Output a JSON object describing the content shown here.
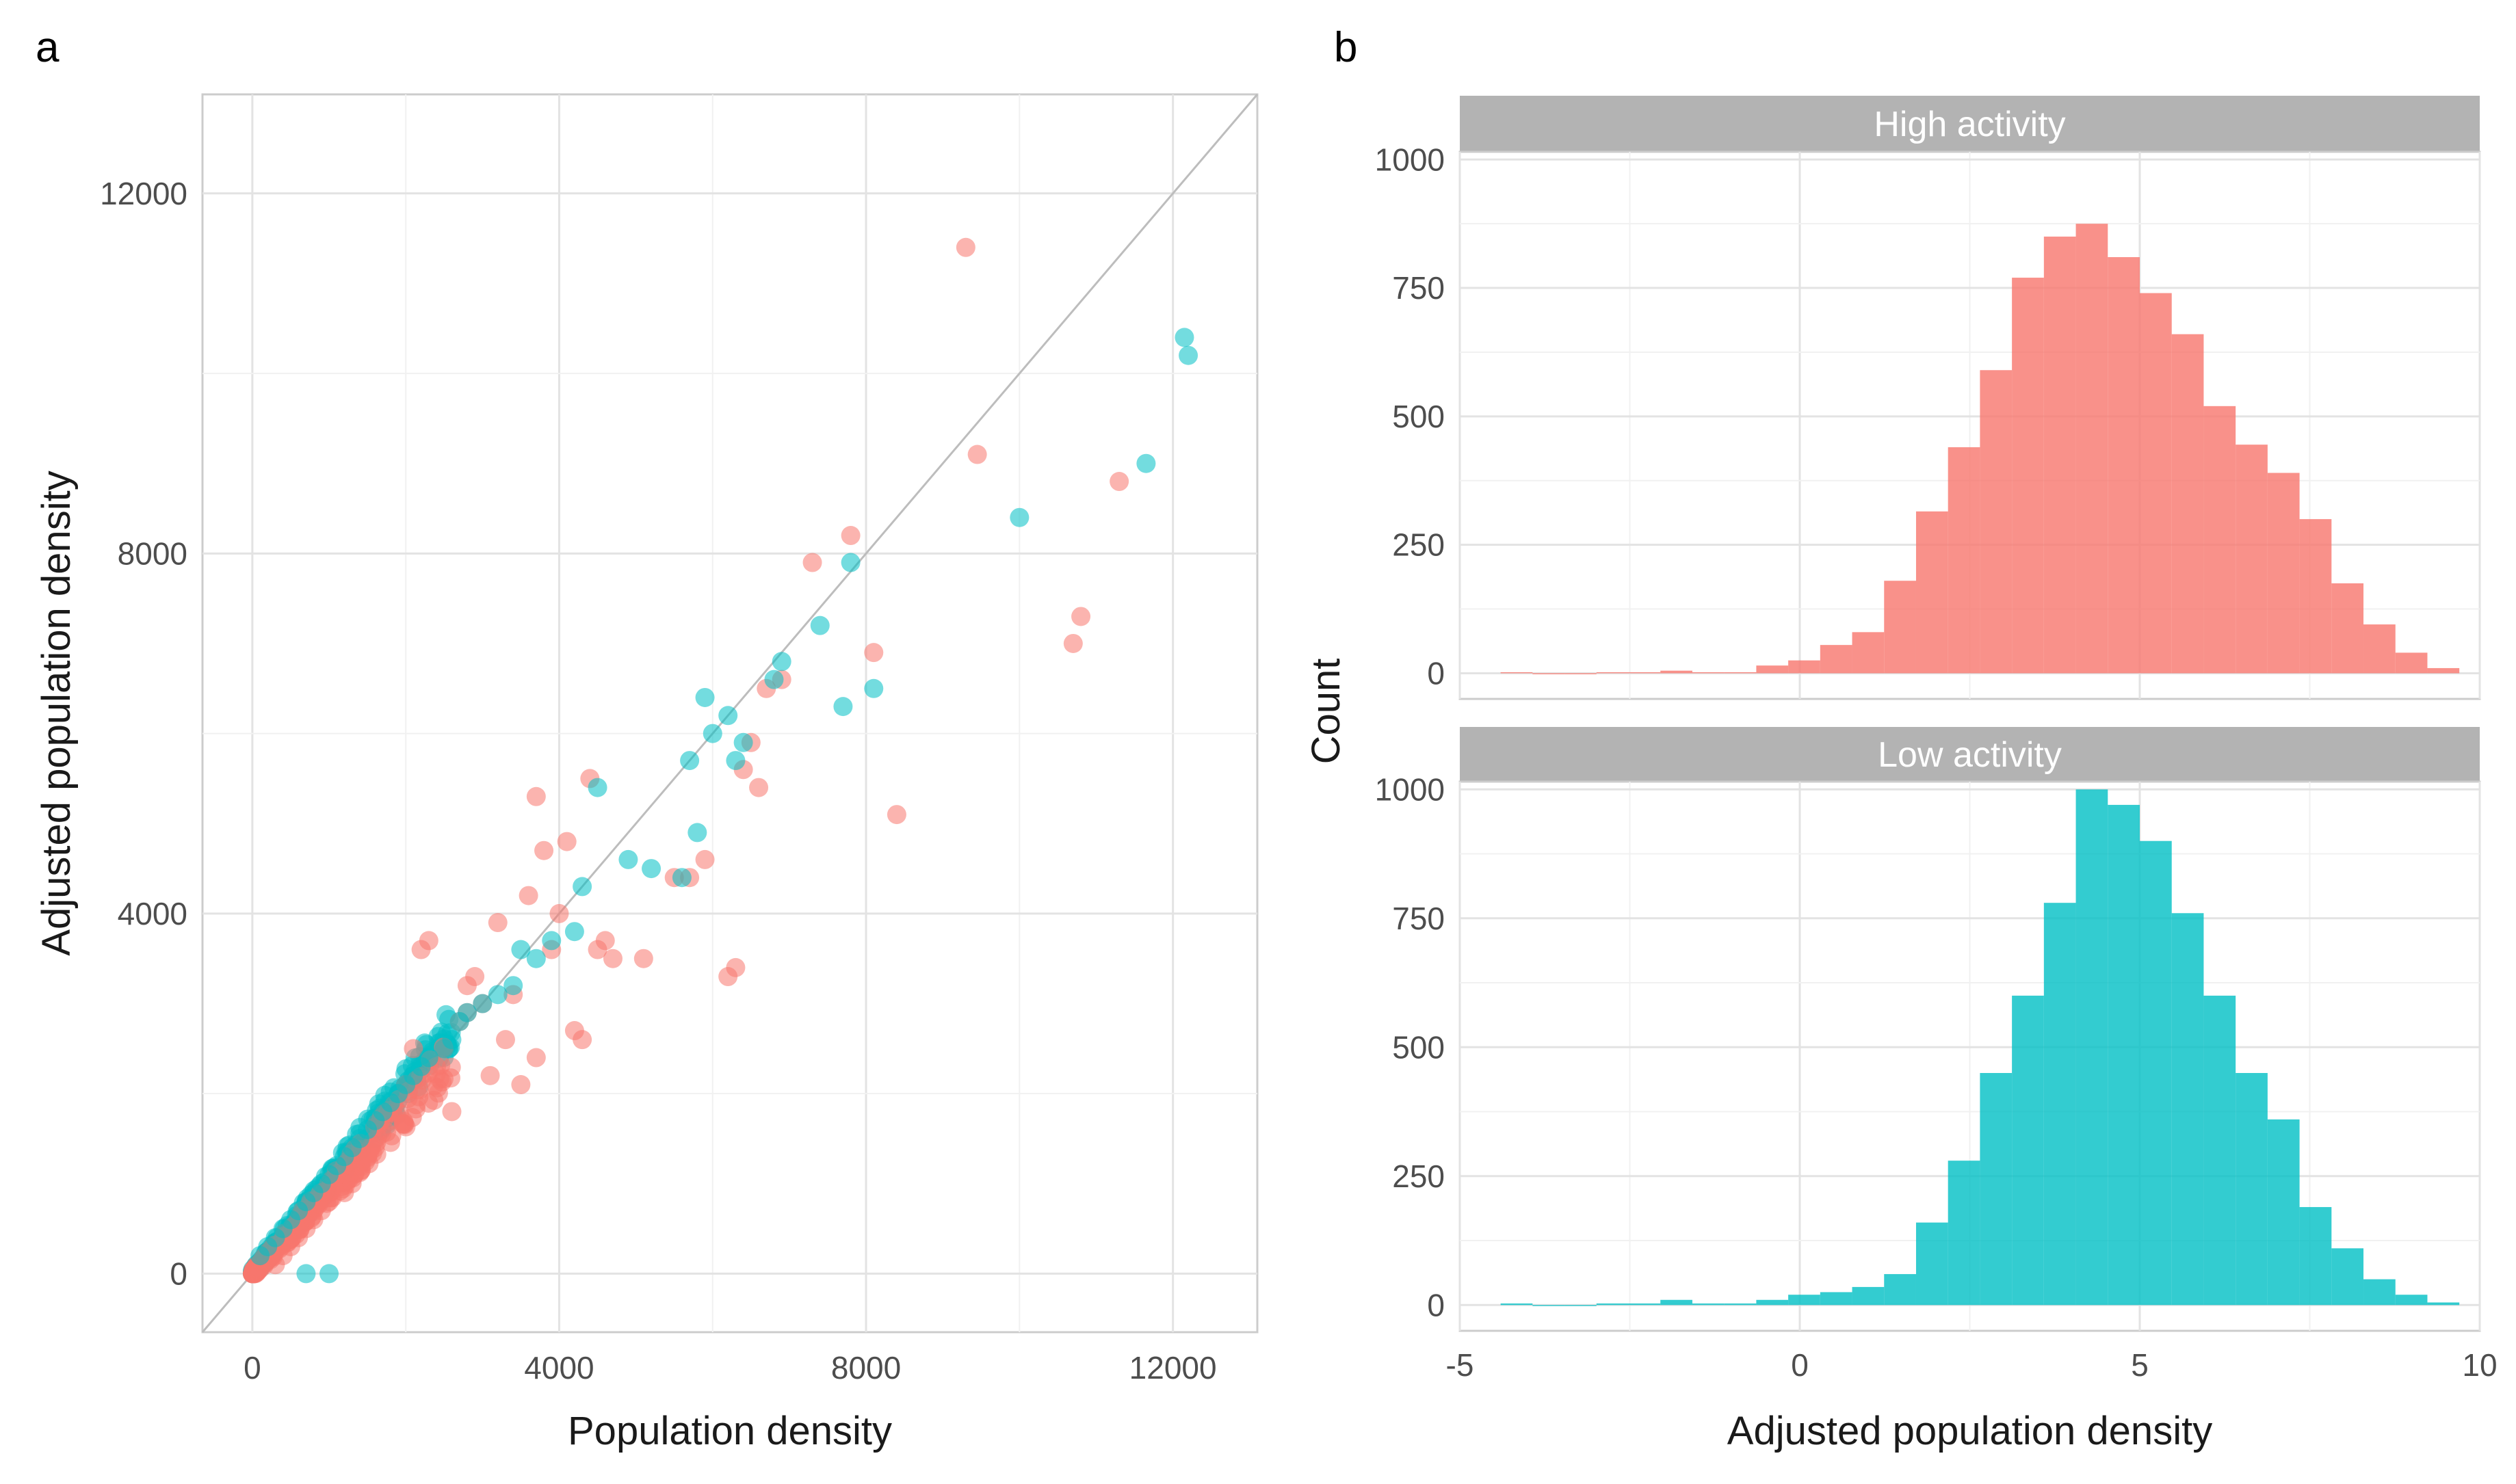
{
  "chart_data": [
    {
      "panel_label": "a",
      "type": "scatter",
      "xlabel": "Population density",
      "ylabel": "Adjusted population density",
      "xlim": [
        -650,
        13100
      ],
      "ylim": [
        -650,
        13100
      ],
      "xticks": [
        0,
        4000,
        8000,
        12000
      ],
      "yticks": [
        0,
        4000,
        8000,
        12000
      ],
      "grid": true,
      "reference_line": "y = x",
      "colors": {
        "high": "#F8766D",
        "low": "#00BFC4"
      },
      "series": [
        {
          "name": "High activity",
          "color": "#F8766D",
          "x": [
            9300,
            9450,
            10700,
            10800,
            11300,
            7800,
            7300,
            8100,
            8400,
            6900,
            6700,
            6300,
            6200,
            6400,
            5500,
            5100,
            4700,
            4300,
            4200,
            4500,
            4600,
            3800,
            3400,
            3300,
            3100,
            3700,
            3500,
            3900,
            4000,
            3200,
            2900,
            2800,
            2500,
            2700,
            2300,
            2200,
            2100,
            2400,
            2600,
            2000,
            1800,
            1600,
            1500,
            1400,
            1300,
            1200,
            1000,
            900,
            800,
            700,
            600,
            500,
            400,
            300,
            3600,
            3700,
            2800,
            3000,
            4100,
            4400,
            5700,
            5900,
            6500,
            6600
          ],
          "y": [
            11400,
            9100,
            7000,
            7300,
            8800,
            8200,
            7900,
            6900,
            5100,
            6600,
            6500,
            3400,
            3300,
            5600,
            4400,
            3500,
            3500,
            2600,
            2700,
            3600,
            3700,
            4700,
            3100,
            2600,
            2200,
            2400,
            2100,
            3600,
            4000,
            3900,
            3300,
            2900,
            2500,
            2800,
            3700,
            3600,
            2500,
            2300,
            1800,
            2100,
            1700,
            1400,
            1300,
            1200,
            1000,
            900,
            800,
            700,
            600,
            500,
            400,
            300,
            200,
            100,
            4200,
            5300,
            3200,
            3000,
            4800,
            5500,
            4400,
            4600,
            5900,
            5400
          ]
        },
        {
          "name": "Low activity",
          "color": "#00BFC4",
          "x": [
            12150,
            12200,
            11650,
            10000,
            7800,
            7700,
            7400,
            8100,
            6900,
            6800,
            6400,
            6300,
            6200,
            5900,
            5800,
            5600,
            5200,
            4900,
            4500,
            4300,
            4200,
            3900,
            3700,
            3500,
            3400,
            3200,
            3000,
            2800,
            2700,
            2600,
            2500,
            2300,
            2200,
            2100,
            2000,
            1900,
            1800,
            1700,
            1600,
            1500,
            1400,
            1300,
            1200,
            1100,
            1000,
            900,
            800,
            700,
            600,
            500,
            400,
            300,
            200,
            100,
            700,
            1000,
            6000,
            5700
          ],
          "y": [
            10400,
            10200,
            9000,
            8400,
            7900,
            6300,
            7200,
            6500,
            6800,
            6600,
            5900,
            5700,
            6200,
            6400,
            4900,
            4400,
            4500,
            4600,
            5400,
            4300,
            3800,
            3700,
            3500,
            3600,
            3200,
            3100,
            3000,
            2900,
            2800,
            2600,
            2500,
            2400,
            2300,
            2200,
            2100,
            2000,
            1900,
            1800,
            1700,
            1600,
            1500,
            1400,
            1300,
            1200,
            1100,
            1000,
            900,
            800,
            700,
            600,
            500,
            400,
            300,
            200,
            0,
            0,
            6000,
            5700
          ]
        }
      ]
    },
    {
      "panel_label": "b",
      "type": "bar",
      "subtype": "histogram",
      "xlabel": "Adjusted population density",
      "ylabel": "Count",
      "xlim": [
        -5,
        10
      ],
      "xticks": [
        -5,
        0,
        5,
        10
      ],
      "ylim": [
        0,
        1000
      ],
      "yticks": [
        0,
        250,
        500,
        750,
        1000
      ],
      "bin_width": 0.47,
      "grid": true,
      "facets": [
        {
          "name": "High activity",
          "color": "#F8766D",
          "bin_starts": [
            -4.4,
            -3.93,
            -3.46,
            -2.99,
            -2.52,
            -2.05,
            -1.58,
            -1.11,
            -0.64,
            -0.17,
            0.3,
            0.77,
            1.24,
            1.71,
            2.18,
            2.65,
            3.12,
            3.59,
            4.06,
            4.53,
            5.0,
            5.47,
            5.94,
            6.41,
            6.88,
            7.35,
            7.82,
            8.29,
            8.76,
            9.23
          ],
          "counts": [
            2,
            0,
            0,
            2,
            2,
            5,
            2,
            2,
            15,
            25,
            55,
            80,
            180,
            315,
            440,
            590,
            770,
            850,
            875,
            810,
            740,
            660,
            520,
            445,
            390,
            300,
            175,
            95,
            40,
            10
          ]
        },
        {
          "name": "Low activity",
          "color": "#00BFC4",
          "bin_starts": [
            -4.4,
            -3.93,
            -3.46,
            -2.99,
            -2.52,
            -2.05,
            -1.58,
            -1.11,
            -0.64,
            -0.17,
            0.3,
            0.77,
            1.24,
            1.71,
            2.18,
            2.65,
            3.12,
            3.59,
            4.06,
            4.53,
            5.0,
            5.47,
            5.94,
            6.41,
            6.88,
            7.35,
            7.82,
            8.29,
            8.76,
            9.23
          ],
          "counts": [
            3,
            0,
            0,
            3,
            3,
            10,
            3,
            3,
            10,
            20,
            25,
            35,
            60,
            160,
            280,
            450,
            600,
            780,
            1000,
            970,
            900,
            760,
            600,
            450,
            360,
            190,
            110,
            50,
            20,
            5
          ]
        }
      ]
    }
  ]
}
